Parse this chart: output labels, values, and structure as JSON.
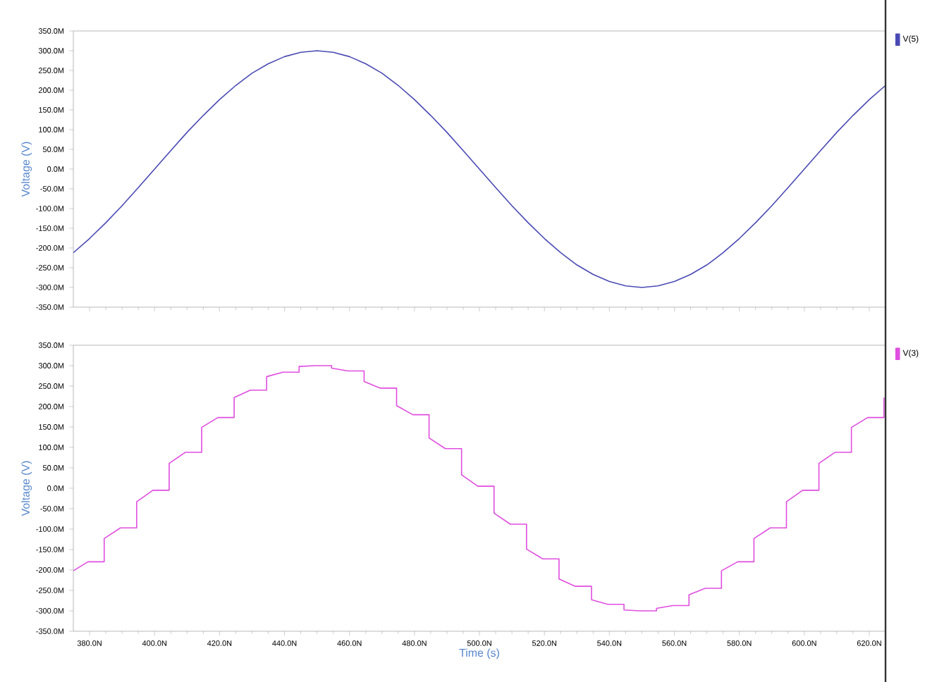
{
  "chart_data": [
    {
      "type": "line",
      "ylabel": "Voltage (V)",
      "tick_labels": "y",
      "legend": "top right",
      "xlim": [
        375,
        625
      ],
      "ylim": [
        -350,
        350
      ],
      "xticks": [
        {
          "value": 380,
          "label": null
        },
        {
          "value": 400,
          "label": null
        },
        {
          "value": 420,
          "label": null
        },
        {
          "value": 440,
          "label": null
        },
        {
          "value": 460,
          "label": null
        },
        {
          "value": 480,
          "label": null
        },
        {
          "value": 500,
          "label": null
        },
        {
          "value": 520,
          "label": null
        },
        {
          "value": 540,
          "label": null
        },
        {
          "value": 560,
          "label": null
        },
        {
          "value": 580,
          "label": null
        },
        {
          "value": 600,
          "label": null
        },
        {
          "value": 620,
          "label": null
        }
      ],
      "yticks": [
        {
          "value": -350,
          "label": "-350.0M"
        },
        {
          "value": -300,
          "label": "-300.0M"
        },
        {
          "value": -250,
          "label": "-250.0M"
        },
        {
          "value": -200,
          "label": "-200.0M"
        },
        {
          "value": -150,
          "label": "-150.0M"
        },
        {
          "value": -100,
          "label": "-100.0M"
        },
        {
          "value": -50,
          "label": "-50.0M"
        },
        {
          "value": 0,
          "label": "0.0M"
        },
        {
          "value": 50,
          "label": "50.0M"
        },
        {
          "value": 100,
          "label": "100.0M"
        },
        {
          "value": 150,
          "label": "150.0M"
        },
        {
          "value": 200,
          "label": "200.0M"
        },
        {
          "value": 250,
          "label": "250.0M"
        },
        {
          "value": 300,
          "label": "300.0M"
        },
        {
          "value": 350,
          "label": "350.0M"
        }
      ],
      "series": [
        {
          "name": "V(5)",
          "color": "#4a4ab4",
          "x": [
            375,
            380,
            385,
            390,
            395,
            400,
            405,
            410,
            415,
            420,
            425,
            430,
            435,
            440,
            445,
            450,
            455,
            460,
            465,
            470,
            475,
            480,
            485,
            490,
            495,
            500,
            505,
            510,
            515,
            520,
            525,
            530,
            535,
            540,
            545,
            550,
            555,
            560,
            565,
            570,
            575,
            580,
            585,
            590,
            595,
            600,
            605,
            610,
            615,
            620,
            625
          ],
          "values": [
            -212,
            -176,
            -136,
            -93,
            -47,
            0,
            47,
            93,
            136,
            176,
            212,
            243,
            267,
            285,
            296,
            300,
            296,
            285,
            267,
            243,
            212,
            176,
            136,
            93,
            47,
            0,
            -47,
            -93,
            -136,
            -176,
            -212,
            -243,
            -267,
            -285,
            -296,
            -300,
            -296,
            -285,
            -267,
            -243,
            -212,
            -176,
            -136,
            -93,
            -47,
            0,
            47,
            93,
            136,
            176,
            212
          ]
        }
      ]
    },
    {
      "type": "line",
      "ylabel": "Voltage (V)",
      "xlabel": "Time (s)",
      "legend": "top right",
      "xlim": [
        375,
        625
      ],
      "ylim": [
        -350,
        350
      ],
      "xticks": [
        {
          "value": 380,
          "label": "380.0N"
        },
        {
          "value": 400,
          "label": "400.0N"
        },
        {
          "value": 420,
          "label": "420.0N"
        },
        {
          "value": 440,
          "label": "440.0N"
        },
        {
          "value": 460,
          "label": "460.0N"
        },
        {
          "value": 480,
          "label": "480.0N"
        },
        {
          "value": 500,
          "label": "500.0N"
        },
        {
          "value": 520,
          "label": "520.0N"
        },
        {
          "value": 540,
          "label": "540.0N"
        },
        {
          "value": 560,
          "label": "560.0N"
        },
        {
          "value": 580,
          "label": "580.0N"
        },
        {
          "value": 600,
          "label": "600.0N"
        },
        {
          "value": 620,
          "label": "620.0N"
        }
      ],
      "yticks": [
        {
          "value": -350,
          "label": "-350.0M"
        },
        {
          "value": -300,
          "label": "-300.0M"
        },
        {
          "value": -250,
          "label": "-250.0M"
        },
        {
          "value": -200,
          "label": "-200.0M"
        },
        {
          "value": -150,
          "label": "-150.0M"
        },
        {
          "value": -100,
          "label": "-100.0M"
        },
        {
          "value": -50,
          "label": "-50.0M"
        },
        {
          "value": 0,
          "label": "0.0M"
        },
        {
          "value": 50,
          "label": "50.0M"
        },
        {
          "value": 100,
          "label": "100.0M"
        },
        {
          "value": 150,
          "label": "150.0M"
        },
        {
          "value": 200,
          "label": "200.0M"
        },
        {
          "value": 250,
          "label": "250.0M"
        },
        {
          "value": 300,
          "label": "300.0M"
        },
        {
          "value": 350,
          "label": "350.0M"
        }
      ],
      "series": [
        {
          "name": "V(3)",
          "color": "#e04ee0",
          "x": [
            375,
            379.5,
            384.5,
            384.5,
            389.5,
            394.5,
            394.5,
            399.5,
            404.5,
            404.5,
            409.5,
            414.5,
            414.5,
            419.5,
            424.5,
            424.5,
            429.5,
            434.5,
            434.5,
            439.5,
            444.5,
            444.5,
            449.5,
            454.5,
            454.5,
            459.5,
            464.5,
            464.5,
            469.5,
            474.5,
            474.5,
            479.5,
            484.5,
            484.5,
            489.5,
            494.5,
            494.5,
            499.5,
            504.5,
            504.5,
            509.5,
            514.5,
            514.5,
            519.5,
            524.5,
            524.5,
            529.5,
            534.5,
            534.5,
            539.5,
            544.5,
            544.5,
            549.5,
            554.5,
            554.5,
            559.5,
            564.5,
            564.5,
            569.5,
            574.5,
            574.5,
            579.5,
            584.5,
            584.5,
            589.5,
            594.5,
            594.5,
            599.5,
            604.5,
            604.5,
            609.5,
            614.5,
            614.5,
            619.5,
            624.5,
            624.5
          ],
          "values": [
            -202,
            -180,
            -180,
            -123,
            -97,
            -97,
            -33,
            -5,
            -5,
            61,
            88,
            88,
            149,
            173,
            173,
            222,
            240,
            240,
            273,
            284,
            284,
            298,
            300,
            300,
            294,
            287,
            287,
            261,
            245,
            245,
            202,
            180,
            180,
            123,
            97,
            97,
            33,
            5,
            5,
            -61,
            -88,
            -88,
            -149,
            -173,
            -173,
            -222,
            -240,
            -240,
            -273,
            -284,
            -284,
            -298,
            -300,
            -300,
            -294,
            -287,
            -287,
            -261,
            -245,
            -245,
            -202,
            -180,
            -180,
            -123,
            -97,
            -97,
            -33,
            -5,
            -5,
            61,
            88,
            88,
            149,
            173,
            173,
            222
          ]
        }
      ]
    }
  ]
}
